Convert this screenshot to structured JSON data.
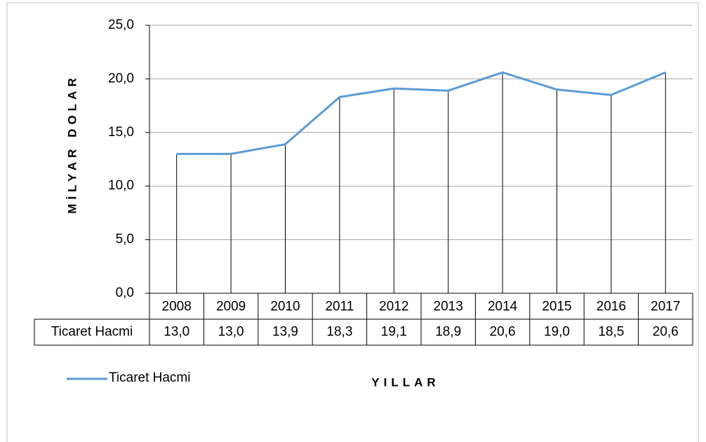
{
  "chart_data": {
    "type": "line",
    "categories": [
      "2008",
      "2009",
      "2010",
      "2011",
      "2012",
      "2013",
      "2014",
      "2015",
      "2016",
      "2017"
    ],
    "series": [
      {
        "name": "Ticaret Hacmi",
        "color": "#5b9bd5",
        "values": [
          13.0,
          13.0,
          13.9,
          18.3,
          19.1,
          18.9,
          20.6,
          19.0,
          18.5,
          20.6
        ],
        "value_labels": [
          "13,0",
          "13,0",
          "13,9",
          "18,3",
          "19,1",
          "18,9",
          "20,6",
          "19,0",
          "18,5",
          "20,6"
        ]
      }
    ],
    "ylim": [
      0,
      25
    ],
    "yticks": [
      {
        "value": 0,
        "label": "0,0"
      },
      {
        "value": 5,
        "label": "5,0"
      },
      {
        "value": 10,
        "label": "10,0"
      },
      {
        "value": 15,
        "label": "15,0"
      },
      {
        "value": 20,
        "label": "20,0"
      },
      {
        "value": 25,
        "label": "25,0"
      }
    ],
    "y_label": "MİLYAR DOLAR",
    "x_label": "YILLAR",
    "grid": true,
    "drop_lines": true,
    "data_table": true,
    "legend": "bottom-left"
  }
}
